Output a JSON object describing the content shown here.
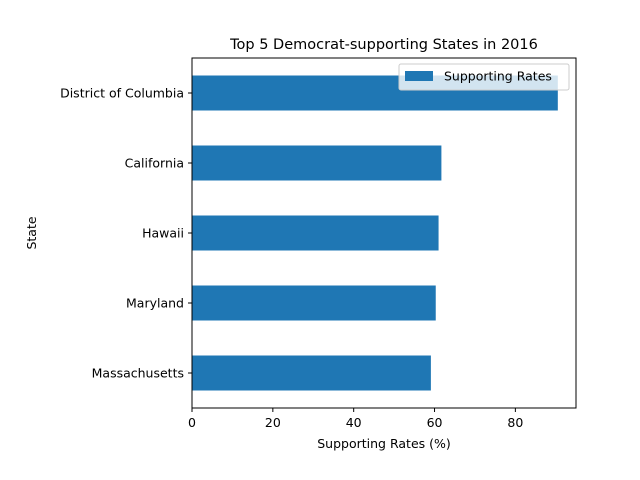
{
  "chart_data": {
    "type": "bar",
    "orientation": "horizontal",
    "title": "Top 5 Democrat-supporting States in 2016",
    "xlabel": "Supporting Rates (%)",
    "ylabel": "State",
    "categories": [
      "District of Columbia",
      "California",
      "Hawaii",
      "Maryland",
      "Massachusetts"
    ],
    "series": [
      {
        "name": "Supporting Rates",
        "values": [
          90.5,
          61.7,
          61.0,
          60.3,
          59.1
        ]
      }
    ],
    "xlim": [
      0,
      95.0
    ],
    "xticks": [
      0,
      20,
      40,
      60,
      80
    ],
    "bar_color": "#1f77b4",
    "legend_position": "top-right",
    "grid": false
  }
}
